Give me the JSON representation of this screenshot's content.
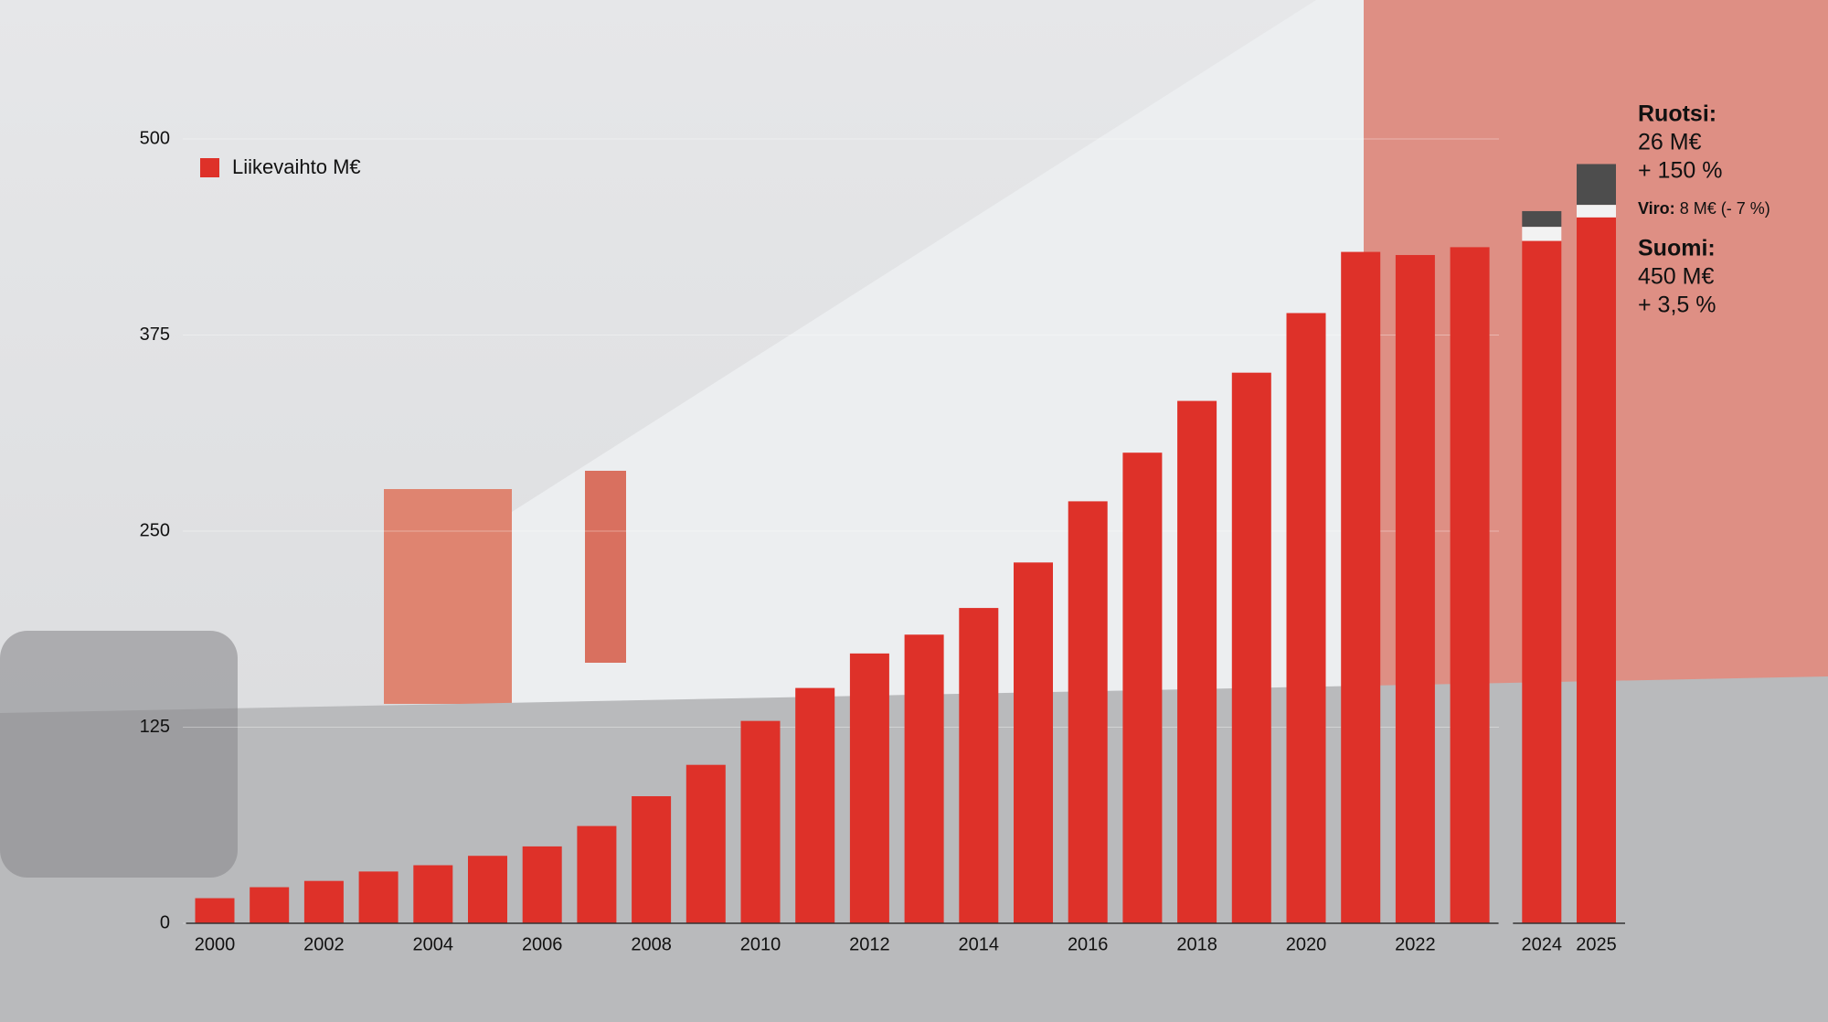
{
  "chart_data": {
    "type": "bar",
    "categories": [
      "2000",
      null,
      "2002",
      null,
      "2004",
      null,
      "2006",
      null,
      "2008",
      null,
      "2010",
      null,
      "2012",
      null,
      "2014",
      null,
      "2016",
      null,
      "2018",
      null,
      "2020",
      null,
      "2022",
      null,
      "2024",
      "2025"
    ],
    "series": [
      {
        "name": "Liikevaihto M€",
        "color": "#de3129",
        "values": [
          16,
          23,
          27,
          33,
          37,
          43,
          49,
          62,
          81,
          101,
          129,
          150,
          172,
          184,
          201,
          230,
          269,
          300,
          333,
          351,
          389,
          428,
          426,
          431,
          435,
          450
        ]
      },
      {
        "color": "#f2f2f2",
        "values": [
          null,
          null,
          null,
          null,
          null,
          null,
          null,
          null,
          null,
          null,
          null,
          null,
          null,
          null,
          null,
          null,
          null,
          null,
          null,
          null,
          null,
          null,
          null,
          null,
          9,
          8
        ]
      },
      {
        "color": "#4d4d4d",
        "values": [
          null,
          null,
          null,
          null,
          null,
          null,
          null,
          null,
          null,
          null,
          null,
          null,
          null,
          null,
          null,
          null,
          null,
          null,
          null,
          null,
          null,
          null,
          null,
          null,
          10,
          26
        ]
      }
    ],
    "ylim": [
      0,
      500
    ],
    "yticks": [
      0,
      125,
      250,
      375,
      500
    ],
    "grid": true,
    "legend": "top-left",
    "annotations": [
      {
        "name": "Ruotsi:",
        "lines": [
          "26 M€",
          "+ 150 %"
        ]
      },
      {
        "name": "Viro:",
        "text": "8 M€ (- 7 %)"
      },
      {
        "name": "Suomi:",
        "lines": [
          "450 M€",
          "+ 3,5 %"
        ]
      }
    ]
  }
}
